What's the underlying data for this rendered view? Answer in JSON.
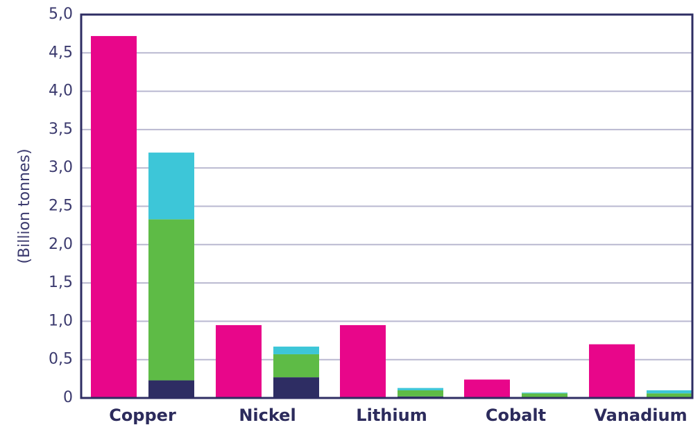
{
  "chart_data": {
    "type": "bar",
    "title": "",
    "xlabel": "",
    "ylabel": "(Billion tonnes)",
    "ylim": [
      0,
      5.0
    ],
    "yticks": [
      "0",
      "0,5",
      "1,0",
      "1,5",
      "2,0",
      "2,5",
      "3,0",
      "3,5",
      "4,0",
      "4,5",
      "5,0"
    ],
    "grid": true,
    "legend": "none",
    "categories": [
      "Copper",
      "Nickel",
      "Lithium",
      "Cobalt",
      "Vanadium"
    ],
    "single_bar": {
      "color": "#e8068a",
      "values": [
        4.72,
        0.95,
        0.95,
        0.24,
        0.7
      ]
    },
    "stacked_bar": {
      "segments": [
        {
          "color": "#2e2d63",
          "values": [
            0.23,
            0.27,
            0.02,
            0.01,
            0.01
          ]
        },
        {
          "color": "#5ebb46",
          "values": [
            2.1,
            0.3,
            0.08,
            0.05,
            0.05
          ]
        },
        {
          "color": "#3dc6d8",
          "values": [
            0.87,
            0.1,
            0.03,
            0.01,
            0.04
          ]
        }
      ]
    },
    "colors": {
      "frame": "#2e2d63",
      "grid": "#b9b8d0",
      "text": "#3b3a6e"
    }
  }
}
